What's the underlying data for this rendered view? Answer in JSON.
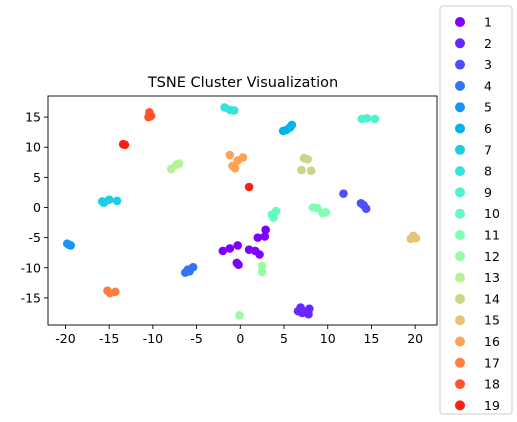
{
  "chart_data": {
    "type": "scatter",
    "title": "TSNE Cluster Visualization",
    "xlabel": "",
    "ylabel": "",
    "xlim": [
      -22,
      22.5
    ],
    "ylim": [
      -19.5,
      18.5
    ],
    "xticks": [
      -20,
      -15,
      -10,
      -5,
      0,
      5,
      10,
      15,
      20
    ],
    "yticks": [
      -15,
      -10,
      -5,
      0,
      5,
      10,
      15
    ],
    "grid": false,
    "legend_position": "right, outside plot",
    "series": [
      {
        "name": "1",
        "color": "#8000ff",
        "points": [
          [
            -2.0,
            -7.2
          ],
          [
            -1.2,
            -6.8
          ],
          [
            -0.3,
            -6.3
          ],
          [
            -0.4,
            -9.2
          ],
          [
            -0.2,
            -9.5
          ],
          [
            1.0,
            -7.0
          ],
          [
            1.7,
            -7.2
          ],
          [
            2.2,
            -7.8
          ],
          [
            2.0,
            -5.0
          ],
          [
            2.8,
            -4.8
          ],
          [
            2.9,
            -3.7
          ]
        ]
      },
      {
        "name": "2",
        "color": "#6629fe",
        "points": [
          [
            6.6,
            -17.2
          ],
          [
            7.1,
            -17.5
          ],
          [
            6.9,
            -16.6
          ],
          [
            7.4,
            -17.3
          ],
          [
            7.8,
            -17.7
          ],
          [
            7.9,
            -16.8
          ]
        ]
      },
      {
        "name": "3",
        "color": "#4c50fc",
        "points": [
          [
            11.8,
            2.3
          ],
          [
            13.8,
            0.7
          ],
          [
            14.1,
            0.4
          ],
          [
            14.4,
            -0.2
          ]
        ]
      },
      {
        "name": "4",
        "color": "#3176f8",
        "points": [
          [
            -6.3,
            -10.8
          ],
          [
            -6.0,
            -10.3
          ],
          [
            -5.8,
            -10.6
          ],
          [
            -5.4,
            -9.9
          ]
        ]
      },
      {
        "name": "5",
        "color": "#1996f3",
        "points": [
          [
            -19.8,
            -6.0
          ],
          [
            -19.6,
            -6.2
          ],
          [
            -19.4,
            -6.3
          ]
        ]
      },
      {
        "name": "6",
        "color": "#00b5eb",
        "points": [
          [
            4.9,
            12.7
          ],
          [
            5.3,
            12.9
          ],
          [
            5.7,
            13.3
          ],
          [
            5.9,
            13.7
          ]
        ]
      },
      {
        "name": "7",
        "color": "#1acfe3",
        "points": [
          [
            -15.8,
            1.0
          ],
          [
            -15.6,
            0.8
          ],
          [
            -15.0,
            1.3
          ],
          [
            -14.1,
            1.1
          ]
        ]
      },
      {
        "name": "8",
        "color": "#33e4d9",
        "points": [
          [
            -1.8,
            16.6
          ],
          [
            -1.2,
            16.2
          ],
          [
            -0.7,
            16.1
          ]
        ]
      },
      {
        "name": "9",
        "color": "#4df3ce",
        "points": [
          [
            13.9,
            14.7
          ],
          [
            14.5,
            14.8
          ],
          [
            15.4,
            14.7
          ]
        ]
      },
      {
        "name": "10",
        "color": "#66fcc1",
        "points": [
          [
            3.6,
            -1.2
          ],
          [
            3.8,
            -1.7
          ],
          [
            4.1,
            -0.6
          ]
        ]
      },
      {
        "name": "11",
        "color": "#80ffb4",
        "points": [
          [
            8.3,
            0.0
          ],
          [
            8.8,
            -0.1
          ],
          [
            9.4,
            -0.9
          ],
          [
            9.8,
            -0.8
          ]
        ]
      },
      {
        "name": "12",
        "color": "#99fca5",
        "points": [
          [
            2.5,
            -9.7
          ],
          [
            2.5,
            -10.7
          ],
          [
            -0.1,
            -17.9
          ]
        ]
      },
      {
        "name": "13",
        "color": "#b3f396",
        "points": [
          [
            -7.9,
            6.4
          ],
          [
            -7.3,
            7.1
          ],
          [
            -7.0,
            7.3
          ]
        ]
      },
      {
        "name": "14",
        "color": "#ccd585",
        "points": [
          [
            7.0,
            6.2
          ],
          [
            7.3,
            8.2
          ],
          [
            7.7,
            8.0
          ],
          [
            8.1,
            6.1
          ]
        ]
      },
      {
        "name": "15",
        "color": "#e6c474",
        "points": [
          [
            19.5,
            -5.2
          ],
          [
            19.8,
            -4.7
          ],
          [
            20.1,
            -5.1
          ]
        ]
      },
      {
        "name": "16",
        "color": "#ffa256",
        "points": [
          [
            -1.2,
            8.7
          ],
          [
            -0.9,
            6.9
          ],
          [
            -0.6,
            6.5
          ],
          [
            -0.3,
            7.8
          ],
          [
            0.3,
            8.3
          ]
        ]
      },
      {
        "name": "17",
        "color": "#ff7d42",
        "points": [
          [
            -15.2,
            -13.8
          ],
          [
            -14.9,
            -14.2
          ],
          [
            -14.3,
            -14.0
          ]
        ]
      },
      {
        "name": "18",
        "color": "#ff552d",
        "points": [
          [
            -10.4,
            15.8
          ],
          [
            -10.2,
            15.2
          ],
          [
            -10.5,
            15.0
          ]
        ]
      },
      {
        "name": "19",
        "color": "#ff1e0f",
        "points": [
          [
            -13.4,
            10.5
          ],
          [
            -13.2,
            10.4
          ],
          [
            1.0,
            3.4
          ]
        ]
      }
    ]
  }
}
